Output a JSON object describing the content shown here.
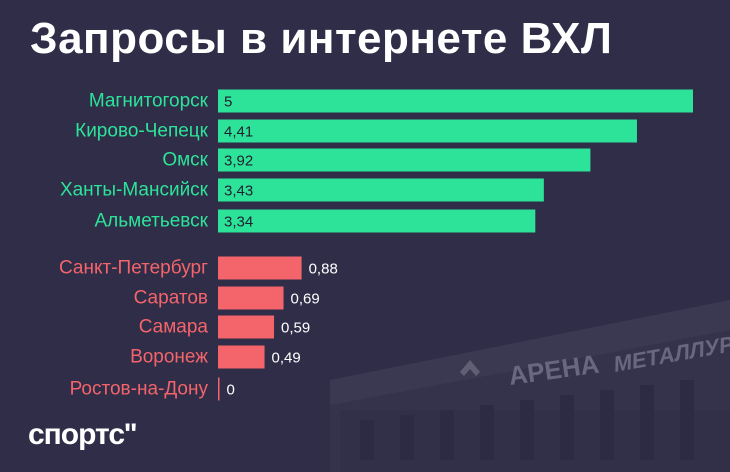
{
  "title": "Запросы в интернете ВХЛ",
  "brand": "спортс''",
  "background_sign": {
    "left_word": "АРЕНА",
    "right_word": "МЕТАЛЛУРГ"
  },
  "colors": {
    "background": "#2f2d47",
    "top_group": "#2de39a",
    "bottom_group": "#f4646b",
    "value_text_dark": "#1f1f2e",
    "value_text_light": "#ffffff"
  },
  "chart_data": {
    "type": "bar",
    "orientation": "horizontal",
    "xlim": [
      0,
      5
    ],
    "categories": [
      "Магнитогорск",
      "Кирово-Чепецк",
      "Омск",
      "Ханты-Мансийск",
      "Альметьевск",
      "Санкт-Петербург",
      "Саратов",
      "Самара",
      "Воронеж",
      "Ростов-на-Дону"
    ],
    "values": [
      5,
      4.41,
      3.92,
      3.43,
      3.34,
      0.88,
      0.69,
      0.59,
      0.49,
      0
    ],
    "labels": [
      "5",
      "4,41",
      "3,92",
      "3,43",
      "3,34",
      "0,88",
      "0,69",
      "0,59",
      "0,49",
      "0"
    ],
    "groups": [
      "top",
      "top",
      "top",
      "top",
      "top",
      "bottom",
      "bottom",
      "bottom",
      "bottom",
      "bottom"
    ]
  }
}
